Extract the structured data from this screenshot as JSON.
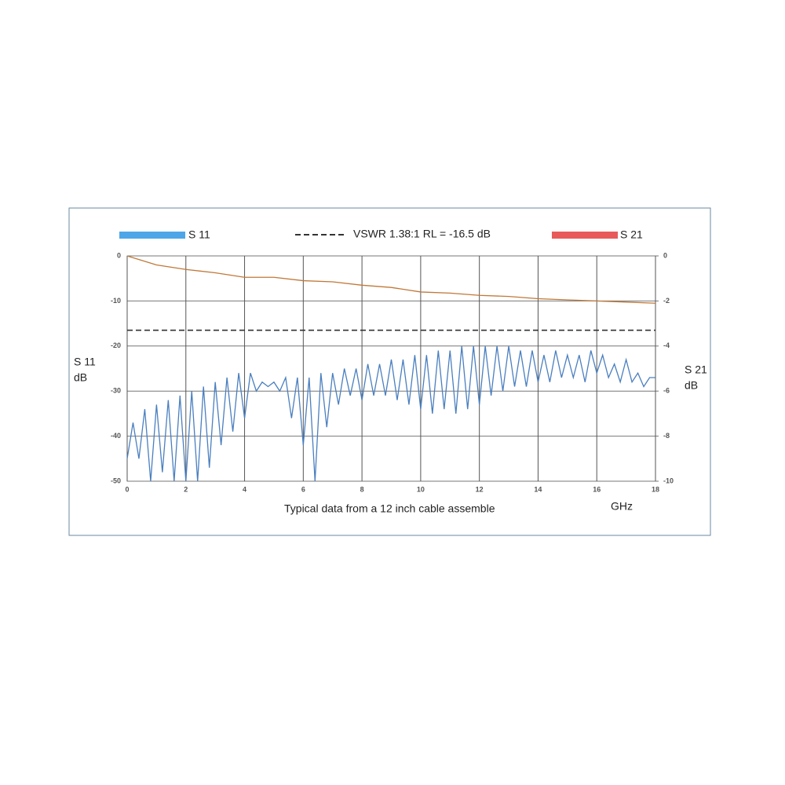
{
  "chart_data": {
    "type": "line",
    "caption": "Typical data from a 12 inch cable assemble",
    "x_label": "GHz",
    "y_label": [
      "S 11",
      "dB"
    ],
    "y2_label": [
      "S 21",
      "dB"
    ],
    "xlim": [
      0,
      18
    ],
    "xticks": [
      0,
      2,
      4,
      6,
      8,
      10,
      12,
      14,
      16,
      18
    ],
    "ylim": [
      -50,
      0
    ],
    "yticks": [
      0,
      -10,
      -20,
      -30,
      -40,
      -50
    ],
    "y2lim": [
      -10,
      0
    ],
    "y2ticks": [
      0,
      -2,
      -4,
      -6,
      -8,
      -10
    ],
    "grid": true,
    "reference_lines": [
      {
        "name": "VSWR 1.38:1 RL = -16.5 dB",
        "value": -16.5,
        "color": "#333333"
      }
    ],
    "series": [
      {
        "name": "S 11",
        "color": "#4ea6e8",
        "line_color": "#4a7fbf",
        "x": [
          0,
          0.2,
          0.4,
          0.6,
          0.8,
          1,
          1.2,
          1.4,
          1.6,
          1.8,
          2,
          2.2,
          2.4,
          2.6,
          2.8,
          3,
          3.2,
          3.4,
          3.6,
          3.8,
          4,
          4.2,
          4.4,
          4.6,
          4.8,
          5,
          5.2,
          5.4,
          5.6,
          5.8,
          6,
          6.2,
          6.4,
          6.6,
          6.8,
          7,
          7.2,
          7.4,
          7.6,
          7.8,
          8,
          8.2,
          8.4,
          8.6,
          8.8,
          9,
          9.2,
          9.4,
          9.6,
          9.8,
          10,
          10.2,
          10.4,
          10.6,
          10.8,
          11,
          11.2,
          11.4,
          11.6,
          11.8,
          12,
          12.2,
          12.4,
          12.6,
          12.8,
          13,
          13.2,
          13.4,
          13.6,
          13.8,
          14,
          14.2,
          14.4,
          14.6,
          14.8,
          15,
          15.2,
          15.4,
          15.6,
          15.8,
          16,
          16.2,
          16.4,
          16.6,
          16.8,
          17,
          17.2,
          17.4,
          17.6,
          17.8,
          18
        ],
        "values": [
          -45,
          -37,
          -45,
          -34,
          -50,
          -33,
          -48,
          -32,
          -50,
          -31,
          -50,
          -30,
          -50,
          -29,
          -47,
          -28,
          -42,
          -27,
          -39,
          -26,
          -36,
          -26,
          -30,
          -28,
          -29,
          -28,
          -30,
          -27,
          -36,
          -27,
          -42,
          -27,
          -50,
          -26,
          -38,
          -26,
          -33,
          -25,
          -31,
          -25,
          -32,
          -24,
          -31,
          -24,
          -31,
          -23,
          -32,
          -23,
          -33,
          -22,
          -34,
          -22,
          -35,
          -21,
          -34,
          -21,
          -35,
          -20,
          -34,
          -20,
          -33,
          -20,
          -31,
          -20,
          -30,
          -20,
          -29,
          -21,
          -29,
          -21,
          -28,
          -22,
          -28,
          -21,
          -27,
          -22,
          -27,
          -22,
          -28,
          -21,
          -26,
          -22,
          -27,
          -24,
          -28,
          -23,
          -28,
          -26,
          -29,
          -27,
          -27
        ]
      },
      {
        "name": "S 21",
        "color": "#e85a5a",
        "line_color": "#c07838",
        "axis": "y2",
        "x": [
          0,
          1,
          2,
          3,
          4,
          5,
          6,
          7,
          8,
          9,
          10,
          11,
          12,
          13,
          14,
          15,
          16,
          17,
          18
        ],
        "values": [
          0,
          -0.4,
          -0.6,
          -0.75,
          -0.95,
          -0.95,
          -1.1,
          -1.15,
          -1.3,
          -1.4,
          -1.6,
          -1.65,
          -1.75,
          -1.8,
          -1.9,
          -1.95,
          -2.0,
          -2.05,
          -2.1
        ]
      }
    ]
  }
}
